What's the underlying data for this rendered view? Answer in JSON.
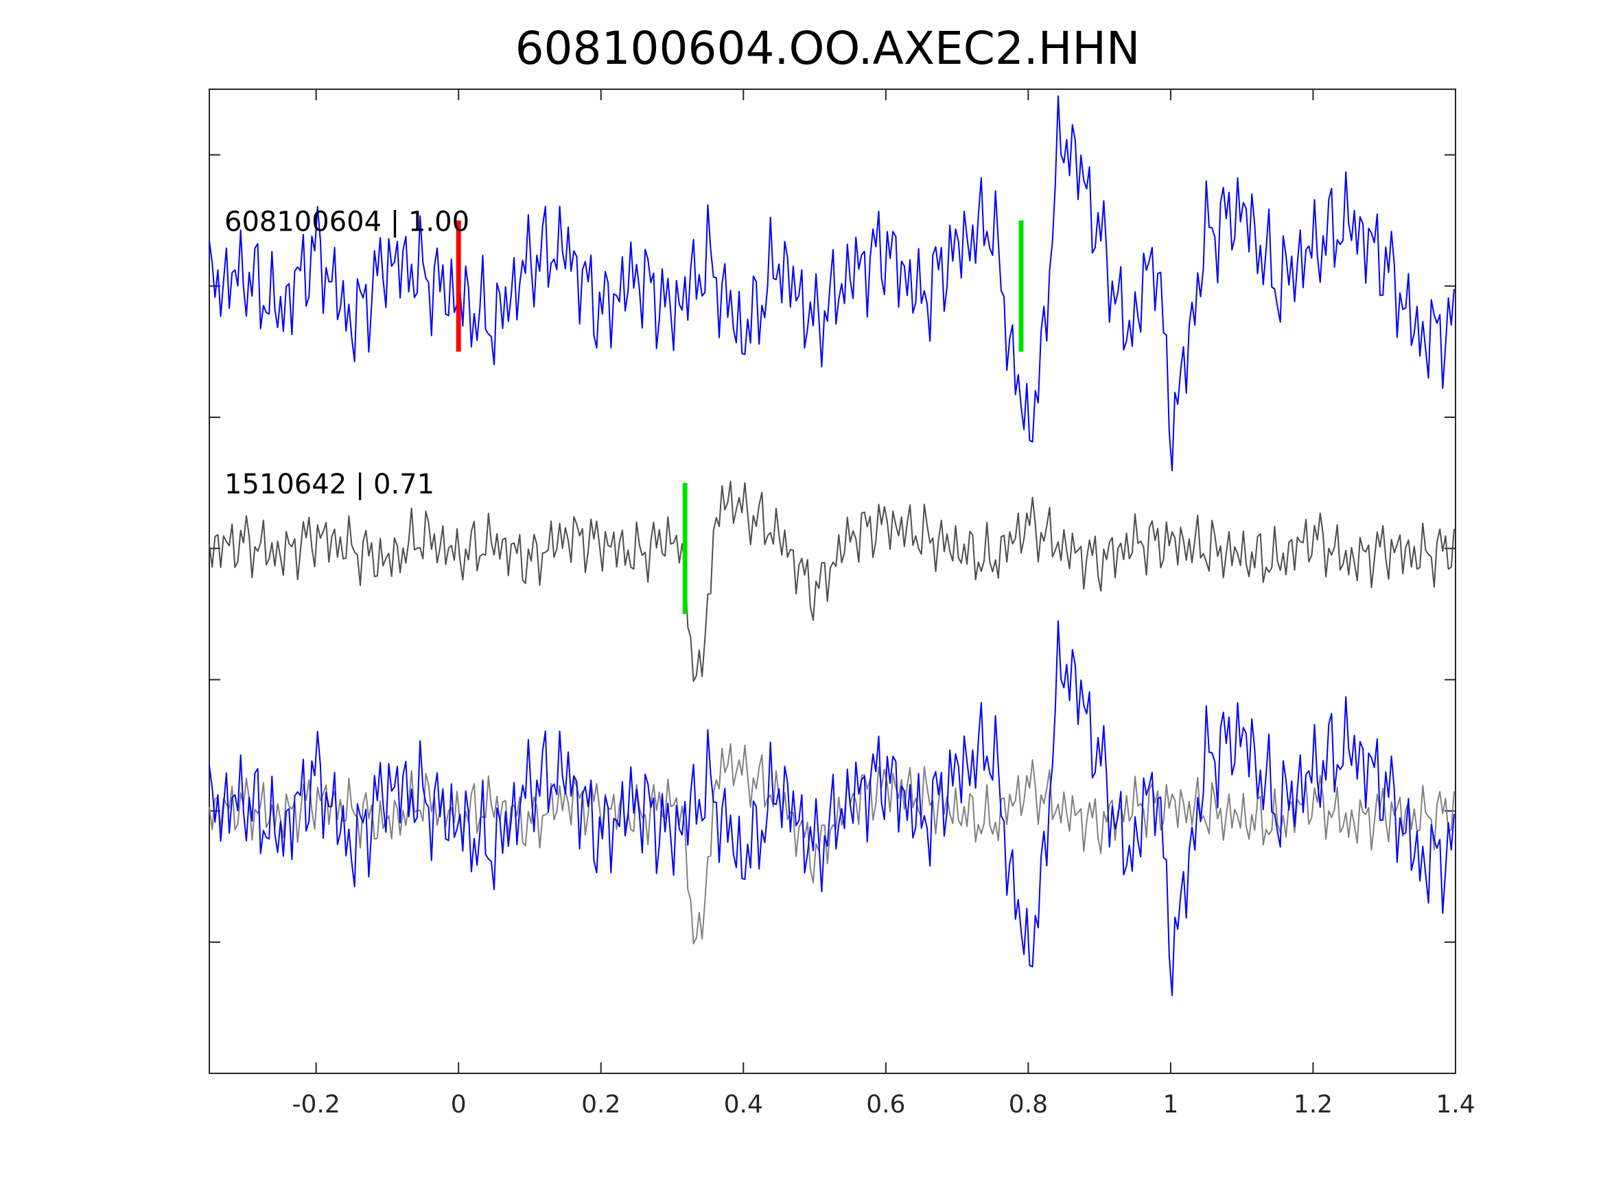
{
  "figure": {
    "title": "608100604.OO.AXEC2.HHN"
  },
  "chart_data": {
    "type": "line",
    "title": "608100604.OO.AXEC2.HHN",
    "xlabel": "",
    "ylabel": "",
    "xlim": [
      -0.35,
      1.4
    ],
    "ylim": [
      -4.0,
      3.5
    ],
    "x_ticks": [
      -0.2,
      0,
      0.2,
      0.4,
      0.6,
      0.8,
      1,
      1.2,
      1.4
    ],
    "x_tick_labels": [
      "-0.2",
      "0",
      "0.2",
      "0.4",
      "0.6",
      "0.8",
      "1",
      "1.2",
      "1.4"
    ],
    "y_ticks": [
      -3,
      -2,
      -1,
      0,
      1,
      2,
      3
    ],
    "grid": false,
    "traces": [
      {
        "label": "608100604 | 1.00",
        "color": "#0000ff",
        "baseline": 2.0,
        "x_shift": 0,
        "x": [
          -0.35,
          -0.3,
          -0.25,
          -0.2,
          -0.15,
          -0.1,
          -0.05,
          0.0,
          0.05,
          0.1,
          0.15,
          0.2,
          0.25,
          0.3,
          0.35,
          0.4,
          0.45,
          0.5,
          0.55,
          0.6,
          0.65,
          0.7,
          0.75,
          0.77,
          0.79,
          0.8,
          0.82,
          0.84,
          0.86,
          0.9,
          0.94,
          0.98,
          1.0,
          1.02,
          1.05,
          1.1,
          1.15,
          1.2,
          1.25,
          1.3,
          1.35,
          1.4
        ],
        "y": [
          0.0,
          0.1,
          -0.2,
          0.3,
          -0.3,
          0.2,
          0.1,
          -0.1,
          -0.3,
          0.2,
          0.3,
          -0.2,
          0.1,
          -0.2,
          0.2,
          -0.4,
          0.2,
          -0.3,
          0.1,
          0.3,
          -0.1,
          0.3,
          0.5,
          -0.3,
          -0.9,
          -1.1,
          -0.6,
          1.0,
          1.1,
          0.4,
          -0.4,
          0.3,
          -1.1,
          -0.6,
          0.4,
          0.6,
          0.0,
          0.3,
          0.5,
          0.2,
          -0.4,
          -0.3
        ],
        "marker_x": [
          0.0,
          0.79
        ],
        "marker_colors": [
          "#ff0000",
          "#00e000"
        ]
      },
      {
        "label": "1510642 | 0.71",
        "color": "#4d4d4d",
        "baseline": 0.0,
        "x_shift": 0.47,
        "x": [
          -0.35,
          -0.3,
          -0.25,
          -0.2,
          -0.15,
          -0.1,
          -0.05,
          0.0,
          0.05,
          0.1,
          0.15,
          0.2,
          0.25,
          0.3,
          0.31,
          0.32,
          0.33,
          0.34,
          0.35,
          0.37,
          0.4,
          0.45,
          0.5,
          0.55,
          0.6,
          0.65,
          0.7,
          0.75,
          0.8,
          0.85,
          0.9,
          0.95,
          1.0,
          1.05,
          1.1,
          1.15,
          1.2,
          1.25,
          1.3,
          1.35,
          1.4
        ],
        "y": [
          0.0,
          0.05,
          -0.05,
          0.1,
          0.0,
          -0.1,
          0.1,
          -0.05,
          0.05,
          -0.1,
          0.1,
          0.05,
          -0.05,
          0.1,
          0.0,
          -0.3,
          -0.9,
          -1.1,
          -0.3,
          0.4,
          0.3,
          0.1,
          -0.35,
          0.1,
          0.2,
          0.1,
          0.0,
          -0.1,
          0.2,
          0.0,
          -0.1,
          0.05,
          0.05,
          0.0,
          -0.05,
          -0.1,
          0.1,
          -0.1,
          0.0,
          -0.05,
          0.0
        ],
        "marker_x": [
          0.318
        ],
        "marker_colors": [
          "#00e000"
        ]
      }
    ],
    "overlay_baseline": -2.0
  }
}
